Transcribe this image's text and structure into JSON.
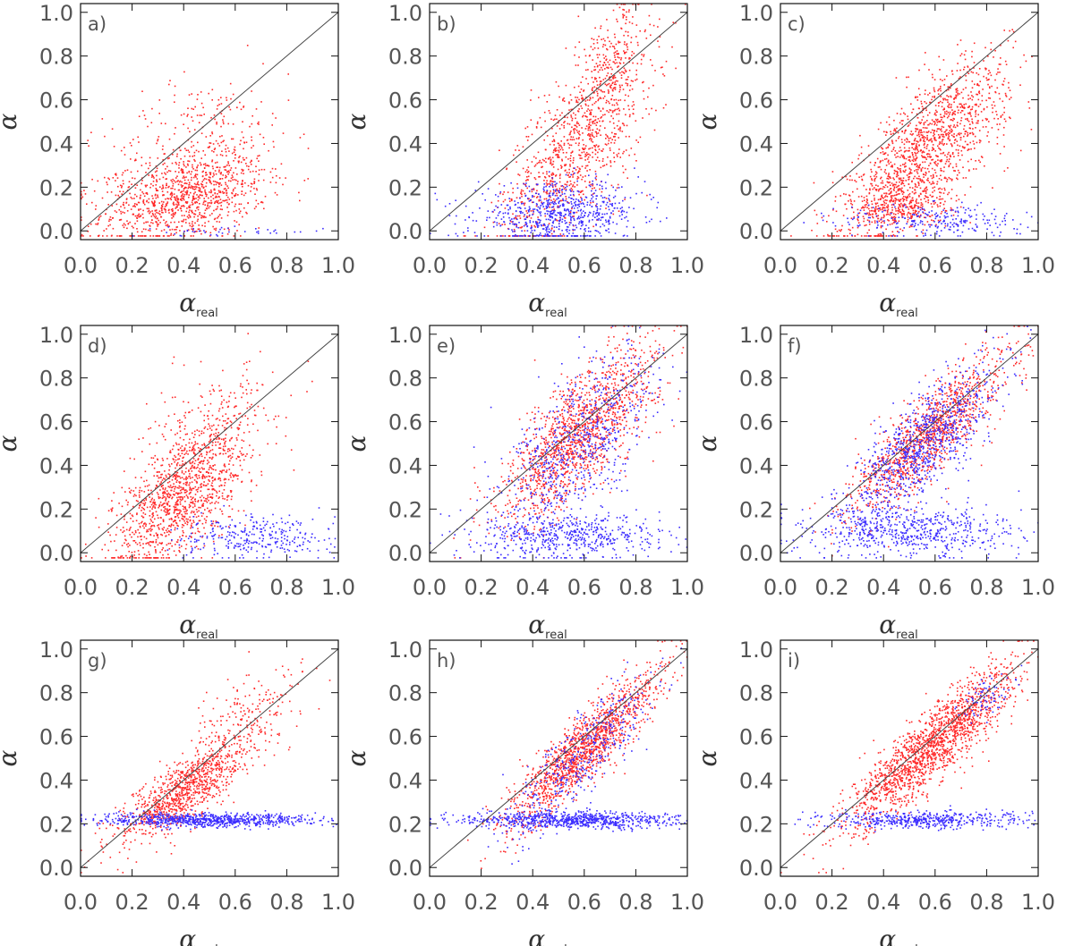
{
  "colors": {
    "series_red": "#ff2a2a",
    "series_blue": "#3b2cff",
    "diagonal": "#444444",
    "frame": "#111111"
  },
  "chart_data": [
    {
      "panel_label": "a)",
      "type": "scatter",
      "xlabel": "α_real",
      "ylabel": "α",
      "xlim": [
        0,
        1
      ],
      "ylim": [
        -0.04,
        1.04
      ],
      "xticks": [
        "0.0",
        "0.2",
        "0.4",
        "0.6",
        "0.8",
        "1.0"
      ],
      "yticks": [
        "0.0",
        "0.2",
        "0.4",
        "0.6",
        "0.8",
        "1.0"
      ],
      "reference_line": "y = x",
      "series": [
        {
          "color": "red",
          "clusters": [
            {
              "cx": 0.4,
              "cy": 0.15,
              "sx": 0.16,
              "sy": 0.1,
              "n": 900,
              "corr": 0.35
            },
            {
              "cx": 0.45,
              "cy": 0.35,
              "sx": 0.18,
              "sy": 0.18,
              "n": 400,
              "corr": 0.3
            }
          ]
        },
        {
          "color": "blue",
          "clusters": [
            {
              "cx": 0.55,
              "cy": 0.0,
              "sx": 0.2,
              "sy": 0.01,
              "n": 40,
              "corr": 0
            }
          ]
        }
      ]
    },
    {
      "panel_label": "b)",
      "type": "scatter",
      "xlabel": "α_real",
      "ylabel": "α",
      "xlim": [
        0,
        1
      ],
      "ylim": [
        -0.04,
        1.04
      ],
      "xticks": [
        "0.0",
        "0.2",
        "0.4",
        "0.6",
        "0.8",
        "1.0"
      ],
      "yticks": [
        "0.0",
        "0.2",
        "0.4",
        "0.6",
        "0.8",
        "1.0"
      ],
      "reference_line": "y = x",
      "series": [
        {
          "color": "red",
          "clusters": [
            {
              "cx": 0.55,
              "cy": 0.35,
              "sx": 0.14,
              "sy": 0.22,
              "n": 900,
              "corr": 0.65
            },
            {
              "cx": 0.7,
              "cy": 0.75,
              "sx": 0.08,
              "sy": 0.15,
              "n": 300,
              "corr": 0.4
            }
          ]
        },
        {
          "color": "blue",
          "clusters": [
            {
              "cx": 0.5,
              "cy": 0.08,
              "sx": 0.16,
              "sy": 0.07,
              "n": 700,
              "corr": 0.1
            }
          ]
        }
      ]
    },
    {
      "panel_label": "c)",
      "type": "scatter",
      "xlabel": "α_real",
      "ylabel": "α",
      "xlim": [
        0,
        1
      ],
      "ylim": [
        -0.04,
        1.04
      ],
      "xticks": [
        "0.0",
        "0.2",
        "0.4",
        "0.6",
        "0.8",
        "1.0"
      ],
      "yticks": [
        "0.0",
        "0.2",
        "0.4",
        "0.6",
        "0.8",
        "1.0"
      ],
      "reference_line": "y = x",
      "series": [
        {
          "color": "red",
          "clusters": [
            {
              "cx": 0.58,
              "cy": 0.4,
              "sx": 0.15,
              "sy": 0.2,
              "n": 1300,
              "corr": 0.7
            },
            {
              "cx": 0.45,
              "cy": 0.12,
              "sx": 0.1,
              "sy": 0.07,
              "n": 400,
              "corr": 0.2
            }
          ]
        },
        {
          "color": "blue",
          "clusters": [
            {
              "cx": 0.6,
              "cy": 0.05,
              "sx": 0.18,
              "sy": 0.04,
              "n": 250,
              "corr": 0
            }
          ]
        }
      ]
    },
    {
      "panel_label": "d)",
      "type": "scatter",
      "xlabel": "α_real",
      "ylabel": "α",
      "xlim": [
        0,
        1
      ],
      "ylim": [
        -0.04,
        1.04
      ],
      "xticks": [
        "0.0",
        "0.2",
        "0.4",
        "0.6",
        "0.8",
        "1.0"
      ],
      "yticks": [
        "0.0",
        "0.2",
        "0.4",
        "0.6",
        "0.8",
        "1.0"
      ],
      "reference_line": "y = x",
      "series": [
        {
          "color": "red",
          "clusters": [
            {
              "cx": 0.38,
              "cy": 0.25,
              "sx": 0.13,
              "sy": 0.16,
              "n": 1100,
              "corr": 0.6
            },
            {
              "cx": 0.5,
              "cy": 0.55,
              "sx": 0.12,
              "sy": 0.15,
              "n": 300,
              "corr": 0.5
            }
          ]
        },
        {
          "color": "blue",
          "clusters": [
            {
              "cx": 0.68,
              "cy": 0.07,
              "sx": 0.15,
              "sy": 0.05,
              "n": 300,
              "corr": 0
            }
          ]
        }
      ]
    },
    {
      "panel_label": "e)",
      "type": "scatter",
      "xlabel": "α_real",
      "ylabel": "α",
      "xlim": [
        0,
        1
      ],
      "ylim": [
        -0.04,
        1.04
      ],
      "xticks": [
        "0.0",
        "0.2",
        "0.4",
        "0.6",
        "0.8",
        "1.0"
      ],
      "yticks": [
        "0.0",
        "0.2",
        "0.4",
        "0.6",
        "0.8",
        "1.0"
      ],
      "reference_line": "y = x",
      "series": [
        {
          "color": "red",
          "clusters": [
            {
              "cx": 0.58,
              "cy": 0.55,
              "sx": 0.15,
              "sy": 0.2,
              "n": 1400,
              "corr": 0.75
            }
          ]
        },
        {
          "color": "blue",
          "clusters": [
            {
              "cx": 0.58,
              "cy": 0.5,
              "sx": 0.16,
              "sy": 0.22,
              "n": 700,
              "corr": 0.7
            },
            {
              "cx": 0.55,
              "cy": 0.08,
              "sx": 0.18,
              "sy": 0.05,
              "n": 500,
              "corr": 0
            }
          ]
        }
      ]
    },
    {
      "panel_label": "f)",
      "type": "scatter",
      "xlabel": "α_real",
      "ylabel": "α",
      "xlim": [
        0,
        1
      ],
      "ylim": [
        -0.04,
        1.04
      ],
      "xticks": [
        "0.0",
        "0.2",
        "0.4",
        "0.6",
        "0.8",
        "1.0"
      ],
      "yticks": [
        "0.0",
        "0.2",
        "0.4",
        "0.6",
        "0.8",
        "1.0"
      ],
      "reference_line": "y = x",
      "series": [
        {
          "color": "red",
          "clusters": [
            {
              "cx": 0.58,
              "cy": 0.55,
              "sx": 0.15,
              "sy": 0.18,
              "n": 1200,
              "corr": 0.85
            }
          ]
        },
        {
          "color": "blue",
          "clusters": [
            {
              "cx": 0.55,
              "cy": 0.5,
              "sx": 0.15,
              "sy": 0.18,
              "n": 900,
              "corr": 0.8
            },
            {
              "cx": 0.5,
              "cy": 0.1,
              "sx": 0.2,
              "sy": 0.06,
              "n": 600,
              "corr": 0
            }
          ]
        }
      ]
    },
    {
      "panel_label": "g)",
      "type": "scatter",
      "xlabel": "α_real",
      "ylabel": "α",
      "xlim": [
        0,
        1
      ],
      "ylim": [
        -0.04,
        1.04
      ],
      "xticks": [
        "0.0",
        "0.2",
        "0.4",
        "0.6",
        "0.8",
        "1.0"
      ],
      "yticks": [
        "0.0",
        "0.2",
        "0.4",
        "0.6",
        "0.8",
        "1.0"
      ],
      "reference_line": "y = x",
      "series": [
        {
          "color": "red",
          "clusters": [
            {
              "cx": 0.4,
              "cy": 0.35,
              "sx": 0.13,
              "sy": 0.12,
              "n": 1000,
              "corr": 0.8
            },
            {
              "cx": 0.65,
              "cy": 0.7,
              "sx": 0.12,
              "sy": 0.12,
              "n": 200,
              "corr": 0.7
            }
          ]
        },
        {
          "color": "blue",
          "clusters": [
            {
              "cx": 0.5,
              "cy": 0.22,
              "sx": 0.22,
              "sy": 0.015,
              "n": 800,
              "corr": 0
            }
          ]
        }
      ]
    },
    {
      "panel_label": "h)",
      "type": "scatter",
      "xlabel": "α_real",
      "ylabel": "α",
      "xlim": [
        0,
        1
      ],
      "ylim": [
        -0.04,
        1.04
      ],
      "xticks": [
        "0.0",
        "0.2",
        "0.4",
        "0.6",
        "0.8",
        "1.0"
      ],
      "yticks": [
        "0.0",
        "0.2",
        "0.4",
        "0.6",
        "0.8",
        "1.0"
      ],
      "reference_line": "y = x",
      "series": [
        {
          "color": "red",
          "clusters": [
            {
              "cx": 0.6,
              "cy": 0.55,
              "sx": 0.15,
              "sy": 0.18,
              "n": 1400,
              "corr": 0.9
            }
          ]
        },
        {
          "color": "blue",
          "clusters": [
            {
              "cx": 0.58,
              "cy": 0.5,
              "sx": 0.14,
              "sy": 0.18,
              "n": 400,
              "corr": 0.85
            },
            {
              "cx": 0.55,
              "cy": 0.22,
              "sx": 0.22,
              "sy": 0.02,
              "n": 800,
              "corr": 0
            }
          ]
        }
      ]
    },
    {
      "panel_label": "i)",
      "type": "scatter",
      "xlabel": "α_real",
      "ylabel": "α",
      "xlim": [
        0,
        1
      ],
      "ylim": [
        -0.04,
        1.04
      ],
      "xticks": [
        "0.0",
        "0.2",
        "0.4",
        "0.6",
        "0.8",
        "1.0"
      ],
      "yticks": [
        "0.0",
        "0.2",
        "0.4",
        "0.6",
        "0.8",
        "1.0"
      ],
      "reference_line": "y = x",
      "series": [
        {
          "color": "red",
          "clusters": [
            {
              "cx": 0.58,
              "cy": 0.55,
              "sx": 0.16,
              "sy": 0.18,
              "n": 1700,
              "corr": 0.88
            }
          ]
        },
        {
          "color": "blue",
          "clusters": [
            {
              "cx": 0.55,
              "cy": 0.22,
              "sx": 0.2,
              "sy": 0.02,
              "n": 500,
              "corr": 0
            },
            {
              "cx": 0.8,
              "cy": 0.78,
              "sx": 0.05,
              "sy": 0.05,
              "n": 80,
              "corr": 0.5
            }
          ]
        }
      ]
    }
  ]
}
